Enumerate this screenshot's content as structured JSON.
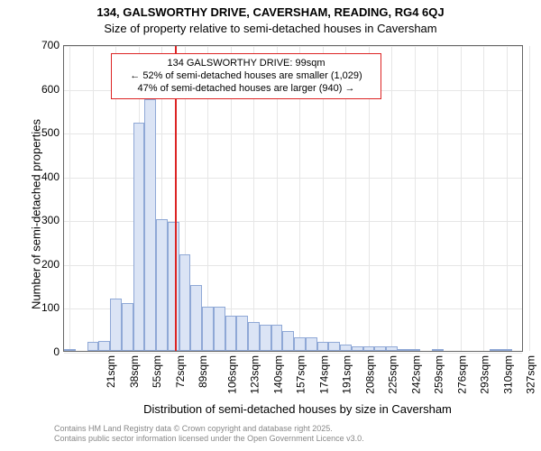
{
  "title_main": "134, GALSWORTHY DRIVE, CAVERSHAM, READING, RG4 6QJ",
  "title_sub": "Size of property relative to semi-detached houses in Caversham",
  "title_fontsize": 13,
  "ylabel": "Number of semi-detached properties",
  "xlabel": "Distribution of semi-detached houses by size in Caversham",
  "axis_label_fontsize": 13,
  "footer_line1": "Contains HM Land Registry data © Crown copyright and database right 2025.",
  "footer_line2": "Contains public sector information licensed under the Open Government Licence v3.0.",
  "annotation": {
    "line1": "134 GALSWORTHY DRIVE: 99sqm",
    "line2": "← 52% of semi-detached houses are smaller (1,029)",
    "line3": "47% of semi-detached houses are larger (940) →",
    "border_color": "#dc2424",
    "fontsize": 11
  },
  "chart": {
    "type": "histogram",
    "ylim": [
      0,
      700
    ],
    "ytick_step": 100,
    "tick_fontsize": 12,
    "background_color": "#ffffff",
    "grid_color": "#e6e6e6",
    "axis_color": "#666666",
    "bar_fill": "#dbe4f5",
    "bar_border": "#8fa8d6",
    "marker_color": "#dc2424",
    "marker_x_value": 99,
    "x_start": 21,
    "x_step_label": 17,
    "x_tick_count": 21,
    "x_unit": "sqm",
    "bin_width_value": 8.5,
    "values": [
      5,
      0,
      20,
      22,
      120,
      110,
      520,
      575,
      300,
      295,
      220,
      150,
      100,
      100,
      80,
      80,
      65,
      60,
      60,
      45,
      30,
      30,
      20,
      20,
      15,
      10,
      10,
      10,
      10,
      5,
      5,
      0,
      5,
      0,
      0,
      0,
      0,
      5,
      5,
      0
    ]
  }
}
